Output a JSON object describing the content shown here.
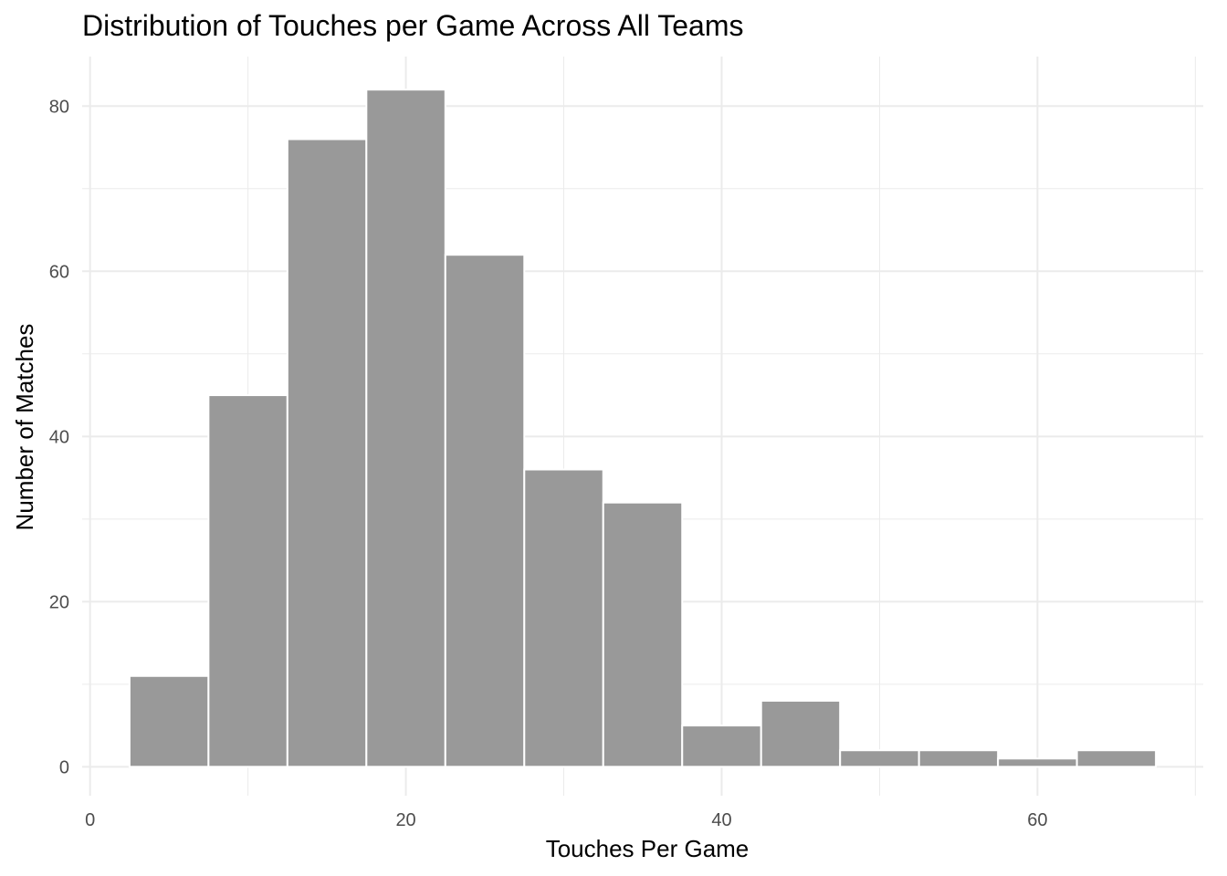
{
  "chart_data": {
    "type": "bar",
    "title": "Distribution of Touches per Game Across All Teams",
    "xlabel": "Touches Per Game",
    "ylabel": "Number of Matches",
    "bin_width": 5,
    "bins": [
      {
        "start": 2.5,
        "end": 7.5,
        "count": 11
      },
      {
        "start": 7.5,
        "end": 12.5,
        "count": 45
      },
      {
        "start": 12.5,
        "end": 17.5,
        "count": 76
      },
      {
        "start": 17.5,
        "end": 22.5,
        "count": 82
      },
      {
        "start": 22.5,
        "end": 27.5,
        "count": 62
      },
      {
        "start": 27.5,
        "end": 32.5,
        "count": 36
      },
      {
        "start": 32.5,
        "end": 37.5,
        "count": 32
      },
      {
        "start": 37.5,
        "end": 42.5,
        "count": 5
      },
      {
        "start": 42.5,
        "end": 47.5,
        "count": 8
      },
      {
        "start": 47.5,
        "end": 52.5,
        "count": 2
      },
      {
        "start": 52.5,
        "end": 57.5,
        "count": 2
      },
      {
        "start": 57.5,
        "end": 62.5,
        "count": 1
      },
      {
        "start": 62.5,
        "end": 67.5,
        "count": 2
      }
    ],
    "xlim": [
      -0.5,
      70.5
    ],
    "ylim": [
      -3.5,
      86
    ],
    "x_major_ticks": [
      0,
      20,
      40,
      60
    ],
    "x_minor_ticks": [
      10,
      30,
      50,
      70
    ],
    "y_major_ticks": [
      0,
      20,
      40,
      60,
      80
    ],
    "y_minor_ticks": [
      10,
      30,
      50,
      70
    ],
    "bar_fill": "#999999",
    "bar_outline": "#ffffff",
    "grid": true,
    "grid_color": "#ebebeb",
    "legend": "none"
  }
}
